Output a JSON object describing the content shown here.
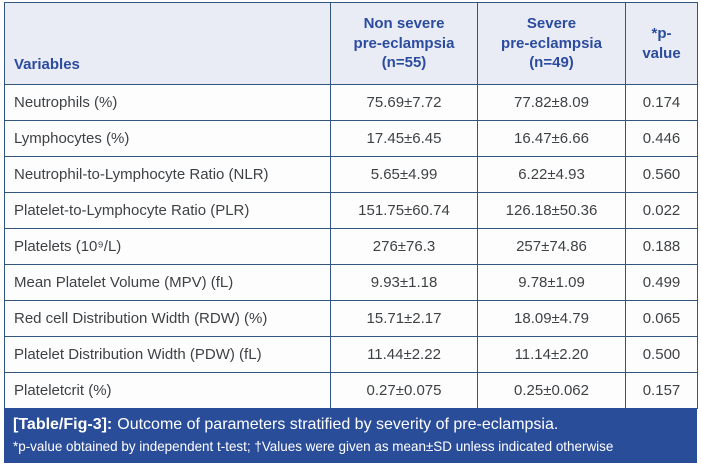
{
  "table": {
    "headers": {
      "variables": "Variables",
      "nonsevere": "Non severe\npre-eclampsia\n(n=55)",
      "severe": "Severe\npre-eclampsia\n(n=49)",
      "pvalue": "*p-\nvalue"
    },
    "rows": [
      {
        "variable": "Neutrophils (%)",
        "nonsevere": "75.69±7.72",
        "severe": "77.82±8.09",
        "p": "0.174"
      },
      {
        "variable": "Lymphocytes (%)",
        "nonsevere": "17.45±6.45",
        "severe": "16.47±6.66",
        "p": "0.446"
      },
      {
        "variable": "Neutrophil-to-Lymphocyte Ratio (NLR)",
        "nonsevere": "5.65±4.99",
        "severe": "6.22±4.93",
        "p": "0.560"
      },
      {
        "variable": "Platelet-to-Lymphocyte Ratio (PLR)",
        "nonsevere": "151.75±60.74",
        "severe": "126.18±50.36",
        "p": "0.022"
      },
      {
        "variable": "Platelets (10⁹/L)",
        "nonsevere": "276±76.3",
        "severe": "257±74.86",
        "p": "0.188"
      },
      {
        "variable": "Mean Platelet Volume (MPV) (fL)",
        "nonsevere": "9.93±1.18",
        "severe": "9.78±1.09",
        "p": "0.499"
      },
      {
        "variable": "Red cell Distribution Width (RDW) (%)",
        "nonsevere": "15.71±2.17",
        "severe": "18.09±4.79",
        "p": "0.065"
      },
      {
        "variable": "Platelet Distribution Width (PDW) (fL)",
        "nonsevere": "11.44±2.22",
        "severe": "11.14±2.20",
        "p": "0.500"
      },
      {
        "variable": "Plateletcrit (%)",
        "nonsevere": "0.27±0.075",
        "severe": "0.25±0.062",
        "p": "0.157"
      }
    ]
  },
  "caption": {
    "label": "[Table/Fig-3]:",
    "title": "Outcome of parameters stratified by severity of pre-eclampsia.",
    "footnote": "*p-value obtained by independent t-test; †Values were given as mean±SD unless indicated otherwise"
  },
  "colors": {
    "header_bg": "#eaecf5",
    "header_text": "#2b4c9e",
    "border": "#33567f",
    "body_text": "#3f4245",
    "caption_bg": "#2a4d99",
    "caption_text": "#ffffff"
  }
}
